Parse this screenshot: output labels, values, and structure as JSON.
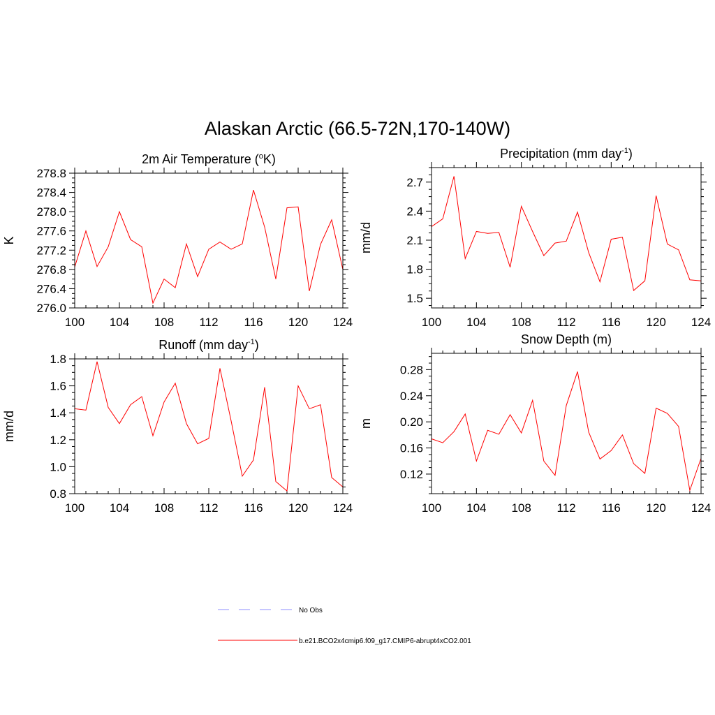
{
  "title": "Alaskan Arctic (66.5-72N,170-140W)",
  "colors": {
    "model": "#ff0000",
    "obs": "#8c8cff"
  },
  "legend": [
    {
      "label": "No Obs",
      "style": "dashed",
      "color": "#8c8cff"
    },
    {
      "label": "b.e21.BCO2x4cmip6.f09_g17.CMIP6-abrupt4xCO2.001",
      "style": "solid",
      "color": "#ff0000"
    }
  ],
  "chart_data": [
    {
      "type": "line",
      "title": "2m Air Temperature (",
      "title_sup": "o",
      "title_post": "K)",
      "ylabel": "K",
      "xlim": [
        100,
        124
      ],
      "ylim": [
        276.0,
        278.8
      ],
      "xticks": [
        100,
        104,
        108,
        112,
        116,
        120,
        124
      ],
      "yticks": [
        276.0,
        276.4,
        276.8,
        277.2,
        277.6,
        278.0,
        278.4,
        278.8
      ],
      "ytick_decimals": 1,
      "x": [
        100,
        101,
        102,
        103,
        104,
        105,
        106,
        107,
        108,
        109,
        110,
        111,
        112,
        113,
        114,
        115,
        116,
        117,
        118,
        119,
        120,
        121,
        122,
        123,
        124
      ],
      "series": [
        {
          "values": [
            276.85,
            277.6,
            276.86,
            277.27,
            278.0,
            277.42,
            277.27,
            276.1,
            276.6,
            276.42,
            277.33,
            276.65,
            277.22,
            277.37,
            277.22,
            277.33,
            278.45,
            277.68,
            276.6,
            278.08,
            278.1,
            276.35,
            277.32,
            277.83,
            276.8
          ]
        }
      ]
    },
    {
      "type": "line",
      "title": "Precipitation (mm day",
      "title_sup": "-1",
      "title_post": ")",
      "ylabel": "mm/d",
      "xlim": [
        100,
        124
      ],
      "ylim": [
        1.4,
        2.85
      ],
      "xticks": [
        100,
        104,
        108,
        112,
        116,
        120,
        124
      ],
      "yticks": [
        1.5,
        1.8,
        2.1,
        2.4,
        2.7
      ],
      "ytick_decimals": 1,
      "x": [
        100,
        101,
        102,
        103,
        104,
        105,
        106,
        107,
        108,
        109,
        110,
        111,
        112,
        113,
        114,
        115,
        116,
        117,
        118,
        119,
        120,
        121,
        122,
        123,
        124
      ],
      "series": [
        {
          "values": [
            2.24,
            2.32,
            2.76,
            1.91,
            2.19,
            2.17,
            2.18,
            1.82,
            2.45,
            2.19,
            1.94,
            2.07,
            2.09,
            2.39,
            1.97,
            1.67,
            2.11,
            2.13,
            1.58,
            1.68,
            2.56,
            2.06,
            2.0,
            1.69,
            1.68
          ]
        }
      ]
    },
    {
      "type": "line",
      "title": "Runoff (mm day",
      "title_sup": "-1",
      "title_post": ")",
      "ylabel": "mm/d",
      "xlim": [
        100,
        124
      ],
      "ylim": [
        0.8,
        1.8
      ],
      "xticks": [
        100,
        104,
        108,
        112,
        116,
        120,
        124
      ],
      "yticks": [
        0.8,
        1.0,
        1.2,
        1.4,
        1.6,
        1.8
      ],
      "ytick_decimals": 1,
      "x": [
        100,
        101,
        102,
        103,
        104,
        105,
        106,
        107,
        108,
        109,
        110,
        111,
        112,
        113,
        114,
        115,
        116,
        117,
        118,
        119,
        120,
        121,
        122,
        123,
        124
      ],
      "series": [
        {
          "values": [
            1.43,
            1.42,
            1.78,
            1.44,
            1.32,
            1.46,
            1.52,
            1.23,
            1.48,
            1.62,
            1.32,
            1.17,
            1.21,
            1.73,
            1.34,
            0.93,
            1.05,
            1.59,
            0.89,
            0.82,
            1.6,
            1.43,
            1.46,
            0.92,
            0.85
          ]
        }
      ]
    },
    {
      "type": "line",
      "title": "Snow Depth (m)",
      "title_sup": "",
      "title_post": "",
      "ylabel": "m",
      "xlim": [
        100,
        124
      ],
      "ylim": [
        0.09,
        0.305
      ],
      "xticks": [
        100,
        104,
        108,
        112,
        116,
        120,
        124
      ],
      "yticks": [
        0.12,
        0.16,
        0.2,
        0.24,
        0.28
      ],
      "ytick_decimals": 2,
      "x": [
        100,
        101,
        102,
        103,
        104,
        105,
        106,
        107,
        108,
        109,
        110,
        111,
        112,
        113,
        114,
        115,
        116,
        117,
        118,
        119,
        120,
        121,
        122,
        123,
        124
      ],
      "series": [
        {
          "values": [
            0.174,
            0.168,
            0.185,
            0.212,
            0.14,
            0.187,
            0.181,
            0.211,
            0.183,
            0.233,
            0.14,
            0.118,
            0.225,
            0.277,
            0.184,
            0.143,
            0.156,
            0.18,
            0.136,
            0.121,
            0.221,
            0.213,
            0.193,
            0.095,
            0.144
          ]
        }
      ]
    }
  ]
}
